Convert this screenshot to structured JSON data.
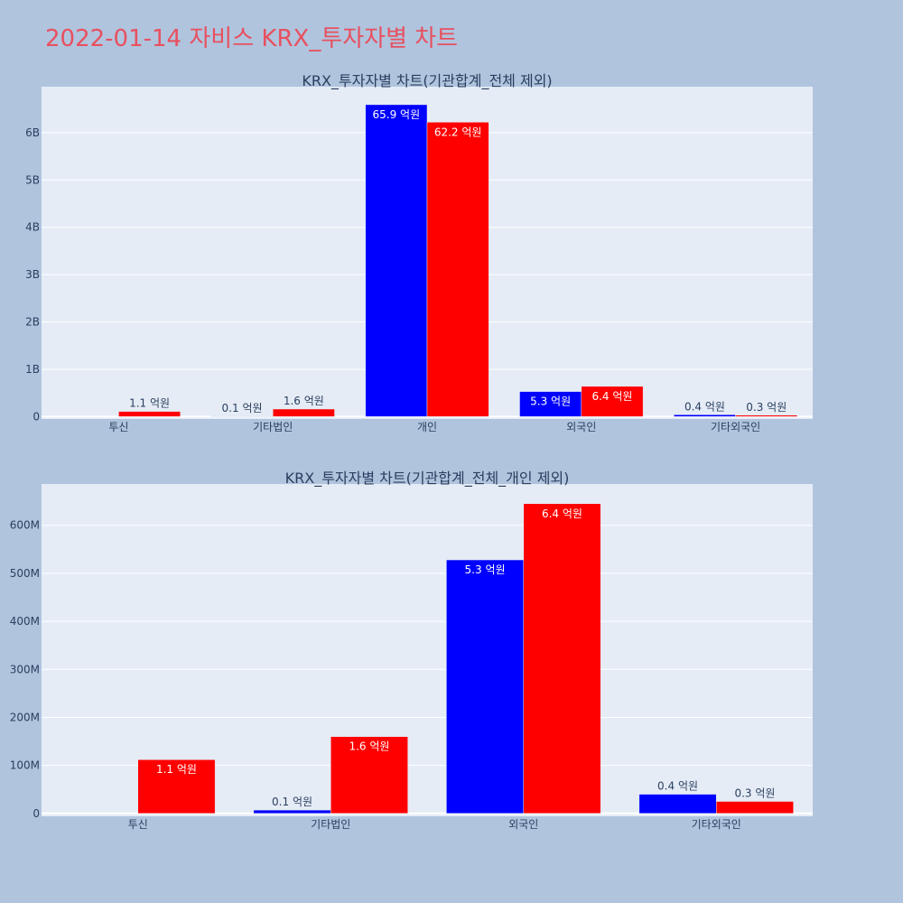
{
  "page": {
    "title": "2022-01-14 자비스 KRX_투자자별 차트"
  },
  "colors": {
    "background": "#b0c4de",
    "plot_background": "#e5ecf6",
    "buy": "#0000ff",
    "sell": "#ff0000",
    "title": "#e8505f"
  },
  "chart_data": [
    {
      "type": "bar",
      "title": "KRX_투자자별 차트(기관합계_전체 제외)",
      "categories": [
        "투신",
        "기타법인",
        "개인",
        "외국인",
        "기타외국인"
      ],
      "series": [
        {
          "color": "#0000ff",
          "values": [
            0,
            10000000,
            6590000000,
            530000000,
            40000000
          ],
          "labels": [
            "",
            "0.1 억원",
            "65.9 억원",
            "5.3 억원",
            "0.4 억원"
          ]
        },
        {
          "color": "#ff0000",
          "values": [
            110000000,
            160000000,
            6220000000,
            640000000,
            30000000
          ],
          "labels": [
            "1.1 억원",
            "1.6 억원",
            "62.2 억원",
            "6.4 억원",
            "0.3 억원"
          ]
        }
      ],
      "yticks": [
        0,
        1000000000,
        2000000000,
        3000000000,
        4000000000,
        5000000000,
        6000000000
      ],
      "ytick_labels": [
        "0",
        "1B",
        "2B",
        "3B",
        "4B",
        "5B",
        "6B"
      ],
      "ylim": [
        -50000000,
        6970000000
      ],
      "grid": true
    },
    {
      "type": "bar",
      "title": "KRX_투자자별 차트(기관합계_전체_개인 제외)",
      "categories": [
        "투신",
        "기타법인",
        "외국인",
        "기타외국인"
      ],
      "series": [
        {
          "color": "#0000ff",
          "values": [
            0,
            7000000,
            528000000,
            40000000
          ],
          "labels": [
            "",
            "0.1 억원",
            "5.3 억원",
            "0.4 억원"
          ]
        },
        {
          "color": "#ff0000",
          "values": [
            112000000,
            160000000,
            645000000,
            25000000
          ],
          "labels": [
            "1.1 억원",
            "1.6 억원",
            "6.4 억원",
            "0.3 억원"
          ]
        }
      ],
      "yticks": [
        0,
        100000000,
        200000000,
        300000000,
        400000000,
        500000000,
        600000000
      ],
      "ytick_labels": [
        "0",
        "100M",
        "200M",
        "300M",
        "400M",
        "500M",
        "600M"
      ],
      "ylim": [
        -6000000,
        686000000
      ],
      "grid": true
    }
  ]
}
